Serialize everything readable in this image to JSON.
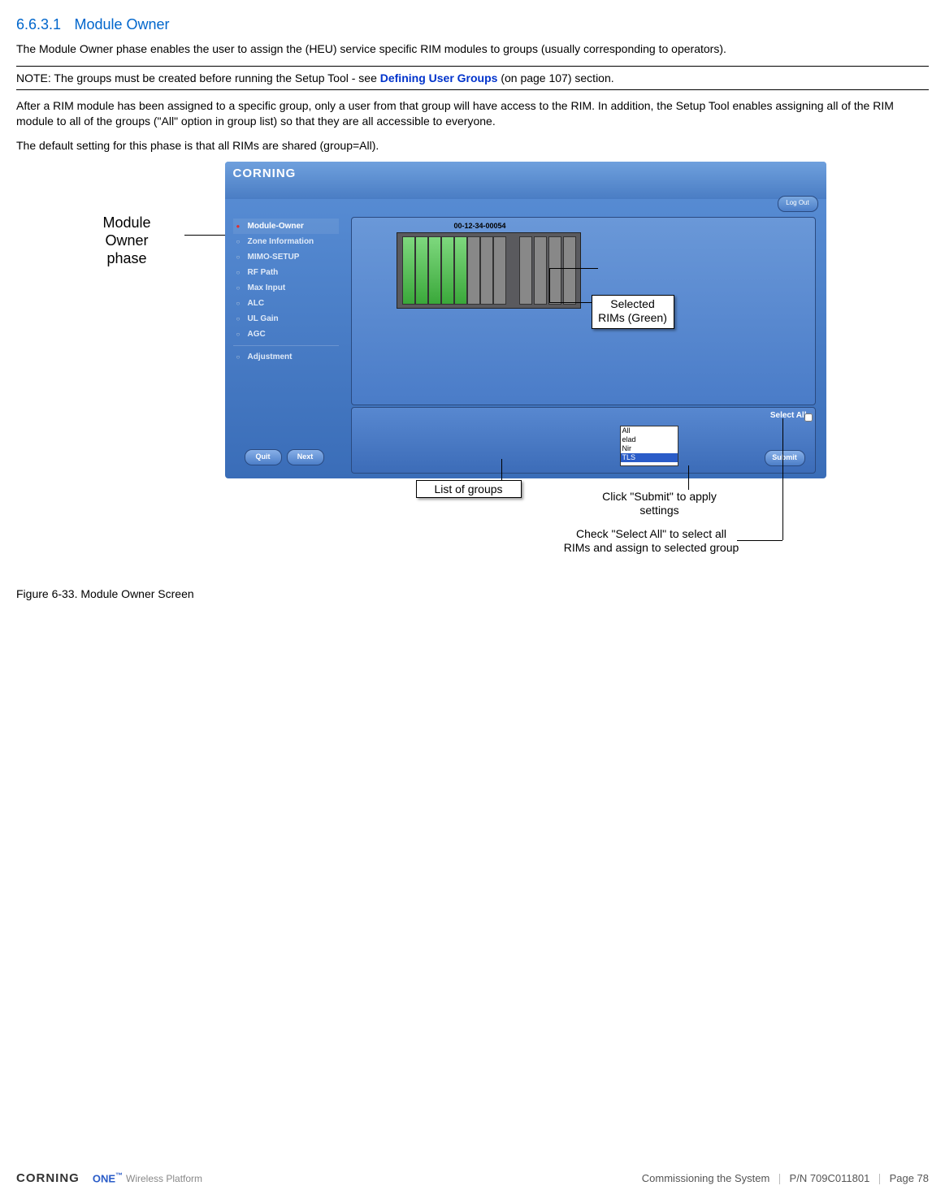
{
  "section": {
    "number": "6.6.3.1",
    "title": "Module Owner"
  },
  "para1": "The Module Owner phase enables the user to assign the (HEU) service specific RIM modules to groups (usually corresponding to operators).",
  "note": {
    "prefix": "NOTE: The groups must be created before running the Setup Tool - see ",
    "link": "Defining User Groups",
    "suffix": " (on page 107) section."
  },
  "para2": "After a RIM module has been assigned to a specific group, only a user from that group will have access to the RIM. In addition, the Setup Tool enables assigning all of the RIM module to all of the groups (\"All\" option in group list) so that they are all accessible to everyone.",
  "para3": "The default setting for this phase is that all RIMs are shared (group=All).",
  "side_label": "Module\nOwner\nphase",
  "app": {
    "brand": "CORNING",
    "logout": "Log Out",
    "chassis_id": "00-12-34-00054",
    "sidebar": [
      {
        "label": "Module-Owner",
        "active": true
      },
      {
        "label": "Zone Information",
        "active": false
      },
      {
        "label": "MIMO-SETUP",
        "active": false
      },
      {
        "label": "RF Path",
        "active": false
      },
      {
        "label": "Max Input",
        "active": false
      },
      {
        "label": "ALC",
        "active": false
      },
      {
        "label": "UL Gain",
        "active": false
      },
      {
        "label": "AGC",
        "active": false
      }
    ],
    "sidebar2": [
      {
        "label": "Adjustment",
        "active": false
      }
    ],
    "rims_callout": "Selected\nRIMs (Green)",
    "select_all": "Select All",
    "groups": [
      "All",
      "elad",
      "Nir",
      "TLS"
    ],
    "selected_group": "TLS",
    "submit": "Submit",
    "quit": "Quit",
    "next": "Next"
  },
  "callouts": {
    "list": "List of groups",
    "submit": "Click \"Submit\" to apply settings",
    "select_all": "Check \"Select All\" to select all RIMs and assign to selected group"
  },
  "figure_caption": "Figure 6-33. Module Owner Screen",
  "footer": {
    "brand": "CORNING",
    "one": "ONE",
    "platform": "Wireless Platform",
    "section": "Commissioning the System",
    "pn": "P/N 709C011801",
    "page": "Page 78"
  },
  "slots": {
    "positions": [
      6,
      22,
      38,
      54,
      70,
      86,
      102,
      118,
      150,
      168,
      186,
      204
    ],
    "rim_indexes": [
      0,
      1,
      2,
      3,
      4
    ]
  }
}
